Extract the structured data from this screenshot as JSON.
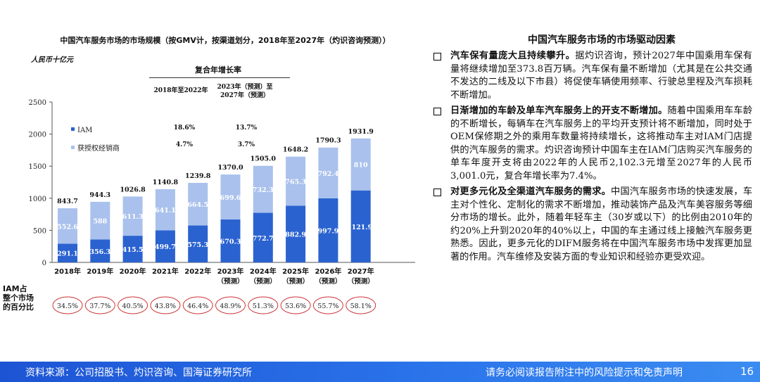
{
  "chart_data": {
    "type": "bar",
    "stacked": true,
    "title": "中国汽车服务市场的市场规模（按GMV计，按渠道划分，2018年至2027年（灼识咨询预测））",
    "ylabel": "人民币十亿元",
    "categories": [
      "2018年",
      "2019年",
      "2020年",
      "2021年",
      "2022年",
      "2023年",
      "2024年",
      "2025年",
      "2026年",
      "2027年"
    ],
    "category_notes": [
      "",
      "",
      "",
      "",
      "",
      "（预测）",
      "（预测）",
      "（预测）",
      "（预测）",
      "（预测）"
    ],
    "ylim": [
      0,
      2500
    ],
    "yticks": [
      "0",
      "500",
      "1000",
      "1500",
      "2000",
      "2500"
    ],
    "grid": false,
    "legend_placement": "top-left",
    "series": [
      {
        "name": "IAM",
        "values": [
          291.1,
          356.3,
          415.5,
          499.7,
          575.3,
          670.3,
          772.7,
          882.9,
          997.9,
          1121.9
        ],
        "labels": [
          "291.1",
          "356.3",
          "415.5",
          "499.7",
          "575.3",
          "670.3",
          "772.7",
          "882.9",
          "997.9",
          "1,121.90"
        ],
        "color": "#2a62d0"
      },
      {
        "name": "获授权经销商",
        "values": [
          552.6,
          588,
          611.3,
          641.1,
          664.5,
          699.6,
          732.3,
          765.3,
          792.4,
          810
        ],
        "labels": [
          "552.6",
          "588",
          "611.3",
          "641.1",
          "664.5",
          "699.6",
          "732.3",
          "765.3",
          "792.4",
          "810"
        ],
        "color": "#a9c1ec"
      }
    ],
    "totals": [
      "843.7",
      "944.3",
      "1026.8",
      "1140.8",
      "1239.8",
      "1370.0",
      "1505.0",
      "1648.2",
      "1790.3",
      "1931.9"
    ],
    "cagr": {
      "title": "复合年增长率",
      "period1": "2018年至2022年",
      "period2_line1": "2023年（预测）至",
      "period2_line2": "2027年（预测）",
      "iam": [
        "18.6%",
        "13.7%"
      ],
      "dealer": [
        "4.7%",
        "3.7%"
      ]
    },
    "iam_share": {
      "label_lines": [
        "IAM占",
        "整个市场",
        "的百分比"
      ],
      "values": [
        "34.5%",
        "37.7%",
        "40.5%",
        "43.8%",
        "46.4%",
        "48.9%",
        "51.3%",
        "53.6%",
        "55.7%",
        "58.1%"
      ]
    }
  },
  "right_panel": {
    "title": "中国汽车服务市场的市场驱动因素",
    "bullets": [
      {
        "head": "汽车保有量庞大且持续攀升。",
        "body": "据灼识咨询，预计2027年中国乘用车保有量将继续增加至373.8百万辆。汽车保有量不断增加（尤其是在公共交通不发达的二线及以下市县）将促使车辆使用频率、行驶总里程及汽车损耗不断增加。"
      },
      {
        "head": "日渐增加的车龄及单车汽车服务上的开支不断增加。",
        "body": "随着中国乘用车车龄的不断增长，每辆车在汽车服务上的平均开支预计将不断增加，同时处于OEM保修期之外的乘用车数量将持续增长，这将推动车主对IAM门店提供的汽车服务的需求。灼识咨询预计中国车主在IAM门店购买汽车服务的单车年度开支将由2022年的人民币2,102.3元增至2027年的人民币3,001.0元，复合年增长率为7.4%。"
      },
      {
        "head": "对更多元化及全渠道汽车服务的需求。",
        "body": "中国汽车服务市场的快速发展，车主对个性化、定制化的需求不断增加，推动装饰产品及汽车美容服务等细分市场的增长。此外，随着年轻车主（30岁或以下）的比例由2010年的约20%上升到2020年的40%以上，中国的车主通过线上接触汽车服务更熟悉。因此，更多元化的DIFM服务将在中国汽车服务市场中发挥更加显著的作用。汽车维修及安装方面的专业知识和经验亦更受欢迎。"
      }
    ]
  },
  "footer": {
    "source": "资料来源：公司招股书、灼识咨询、国海证券研究所",
    "disclaimer": "请务必阅读报告附注中的风险提示和免责声明",
    "page": "16"
  }
}
